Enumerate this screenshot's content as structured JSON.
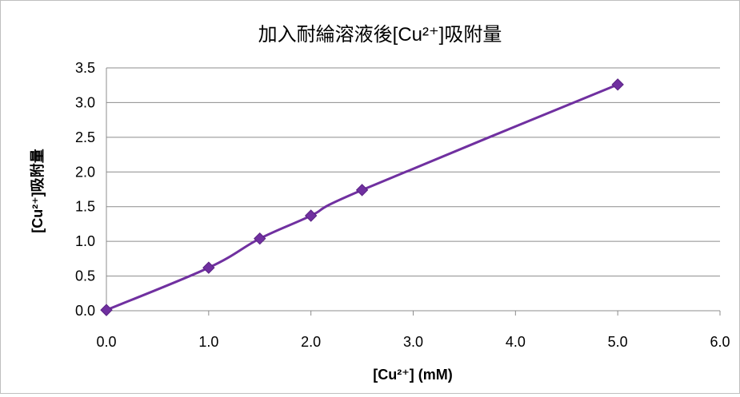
{
  "chart_data": {
    "type": "line",
    "title": "加入耐綸溶液後[Cu²⁺]吸附量",
    "xlabel": "[Cu²⁺] (mM)",
    "ylabel": "[Cu²⁺]吸附量",
    "xlim": [
      0,
      6
    ],
    "ylim": [
      0,
      3.5
    ],
    "x_ticks": [
      "0.0",
      "1.0",
      "2.0",
      "3.0",
      "4.0",
      "5.0",
      "6.0"
    ],
    "y_ticks": [
      "0.0",
      "0.5",
      "1.0",
      "1.5",
      "2.0",
      "2.5",
      "3.0",
      "3.5"
    ],
    "grid": "horizontal",
    "legend": "none",
    "series": [
      {
        "x": [
          0.0,
          1.0,
          1.5,
          2.0,
          2.5,
          5.0
        ],
        "y": [
          0.01,
          0.62,
          1.04,
          1.37,
          1.74,
          3.26
        ]
      }
    ],
    "colors": {
      "line": "#7030a0",
      "marker": "#7030a0",
      "grid": "#8c8c8c",
      "axis": "#8c8c8c"
    }
  }
}
